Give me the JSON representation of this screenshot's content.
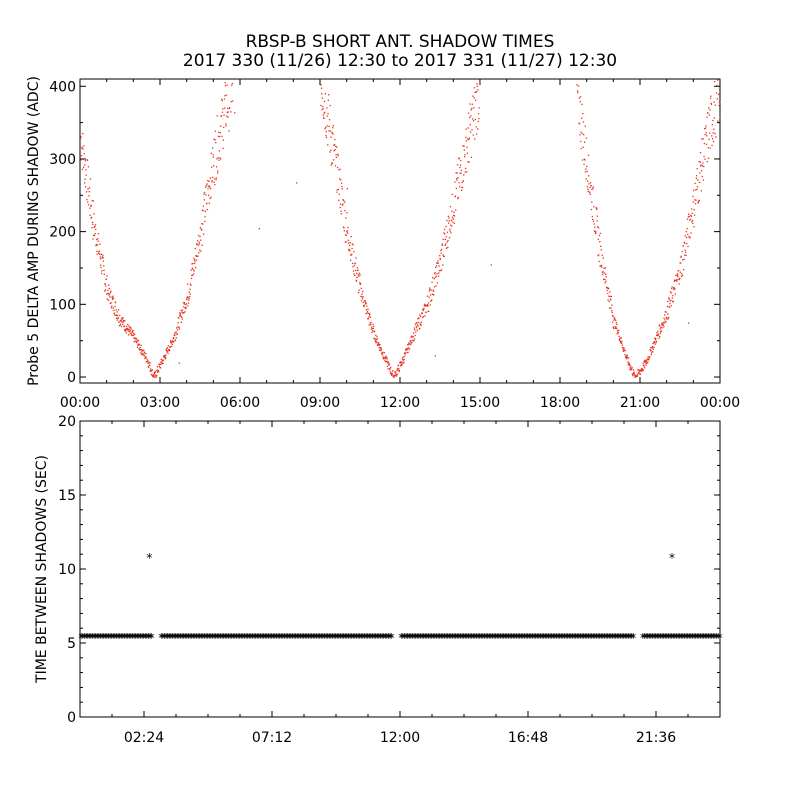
{
  "title_line1": "RBSP-B SHORT ANT. SHADOW TIMES",
  "title_line2": "2017 330 (11/26) 12:30 to 2017 331 (11/27) 12:30",
  "chart_data": [
    {
      "type": "scatter",
      "ylabel": "Probe 5 DELTA AMP DURING SHADOW (ADC)",
      "xlim_hours": [
        0,
        24
      ],
      "ylim": [
        0,
        410
      ],
      "xtick_labels": [
        "00:00",
        "03:00",
        "06:00",
        "09:00",
        "12:00",
        "15:00",
        "18:00",
        "21:00",
        "00:00"
      ],
      "ytick_labels": [
        "0",
        "100",
        "200",
        "300",
        "400"
      ],
      "ytick_values": [
        0,
        100,
        200,
        300,
        400
      ],
      "color": "#e8321e",
      "note": "Three U-shaped clusters; amplitude falls to ~0 at minima and rises beyond 400 between them",
      "minima_hours": [
        2.75,
        11.75,
        20.8
      ],
      "approx_curve": [
        [
          0.0,
          330
        ],
        [
          0.5,
          210
        ],
        [
          1.0,
          120
        ],
        [
          1.5,
          80
        ],
        [
          2.0,
          55
        ],
        [
          2.5,
          25
        ],
        [
          2.75,
          0
        ],
        [
          3.1,
          25
        ],
        [
          3.5,
          55
        ],
        [
          4.0,
          110
        ],
        [
          4.5,
          200
        ],
        [
          5.0,
          300
        ],
        [
          5.5,
          380
        ],
        [
          5.8,
          410
        ],
        [
          9.0,
          410
        ],
        [
          9.5,
          310
        ],
        [
          10.0,
          200
        ],
        [
          10.5,
          120
        ],
        [
          11.0,
          60
        ],
        [
          11.5,
          20
        ],
        [
          11.75,
          0
        ],
        [
          12.1,
          25
        ],
        [
          12.5,
          60
        ],
        [
          13.0,
          100
        ],
        [
          13.5,
          160
        ],
        [
          14.0,
          240
        ],
        [
          14.5,
          320
        ],
        [
          15.0,
          400
        ],
        [
          18.6,
          400
        ],
        [
          19.0,
          290
        ],
        [
          19.5,
          170
        ],
        [
          20.0,
          80
        ],
        [
          20.5,
          25
        ],
        [
          20.8,
          0
        ],
        [
          21.2,
          20
        ],
        [
          21.6,
          55
        ],
        [
          22.0,
          90
        ],
        [
          22.5,
          150
        ],
        [
          23.0,
          240
        ],
        [
          23.5,
          330
        ],
        [
          24.0,
          400
        ]
      ]
    },
    {
      "type": "scatter",
      "ylabel": "TIME BETWEEN SHADOWS (SEC)",
      "xlim_hours": [
        0,
        24
      ],
      "ylim": [
        0,
        20
      ],
      "xtick_labels": [
        "02:24",
        "07:12",
        "12:00",
        "16:48",
        "21:36"
      ],
      "xtick_values_hours": [
        2.4,
        7.2,
        12.0,
        16.8,
        21.6
      ],
      "ytick_labels": [
        "0",
        "5",
        "10",
        "15",
        "20"
      ],
      "ytick_values": [
        0,
        5,
        10,
        15,
        20
      ],
      "marker": "*",
      "color": "#000000",
      "baseline_value": 5.4,
      "baseline_gaps_hours": [
        [
          2.75,
          3.05
        ],
        [
          11.75,
          12.05
        ],
        [
          20.8,
          21.1
        ]
      ],
      "outliers": [
        {
          "x_hours": 2.6,
          "y": 10.8
        },
        {
          "x_hours": 22.2,
          "y": 10.8
        }
      ]
    }
  ]
}
